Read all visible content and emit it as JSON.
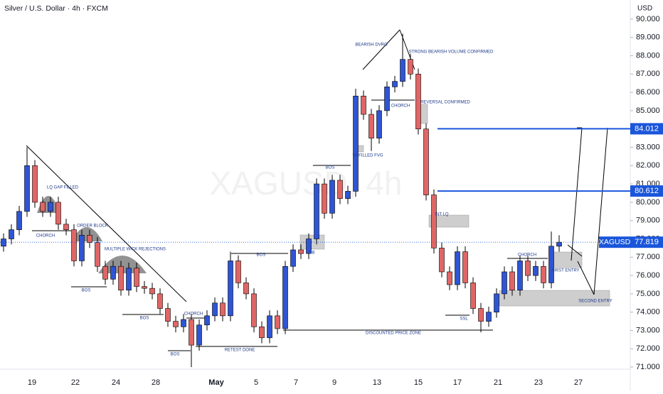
{
  "chart_data": {
    "type": "candlestick",
    "title": "Silver / U.S. Dollar · 4h · FXCM",
    "watermark": "XAGUSD, 4h",
    "y_unit": "USD",
    "symbol": "XAGUSD",
    "last_price": 77.819,
    "up_color": "#2f55d4",
    "down_color": "#e06666",
    "level_color": "#1a56db",
    "ylim": [
      70.5,
      90.5
    ],
    "yticks": [
      {
        "value": 71,
        "label": "71.000"
      },
      {
        "value": 72,
        "label": "72.000"
      },
      {
        "value": 73,
        "label": "73.000"
      },
      {
        "value": 74,
        "label": "74.000"
      },
      {
        "value": 75,
        "label": "75.000"
      },
      {
        "value": 76,
        "label": "76.000"
      },
      {
        "value": 77,
        "label": "77.000"
      },
      {
        "value": 78,
        "label": "78.000"
      },
      {
        "value": 79,
        "label": "79.000"
      },
      {
        "value": 80,
        "label": "80.000"
      },
      {
        "value": 81,
        "label": "81.000"
      },
      {
        "value": 82,
        "label": "82.000"
      },
      {
        "value": 83,
        "label": "83.000"
      },
      {
        "value": 84,
        "label": "84.000"
      },
      {
        "value": 85,
        "label": "85.000"
      },
      {
        "value": 86,
        "label": "86.000"
      },
      {
        "value": 87,
        "label": "87.000"
      },
      {
        "value": 88,
        "label": "88.000"
      },
      {
        "value": 89,
        "label": "89.000"
      },
      {
        "value": 90,
        "label": "90.000"
      }
    ],
    "x_labels": [
      "19",
      "22",
      "24",
      "28",
      "May",
      "5",
      "7",
      "9",
      "13",
      "15",
      "17",
      "21",
      "23",
      "27"
    ],
    "levels": [
      84.012,
      80.612
    ],
    "open": [
      77.6,
      78.0,
      78.5,
      79.5,
      82.0,
      80.0,
      79.5,
      80.0,
      78.8,
      78.5,
      76.8,
      78.2,
      77.8,
      76.5,
      75.8,
      76.5,
      75.2,
      76.4,
      75.4,
      75.3,
      75.0,
      74.2,
      73.5,
      73.2,
      73.6,
      72.2,
      73.3,
      73.8,
      74.5,
      73.8,
      76.8,
      75.6,
      75.0,
      73.2,
      72.6,
      73.8,
      73.1,
      76.5,
      77.4,
      77.2,
      78.0,
      81.0,
      79.4,
      81.2,
      80.2,
      80.6,
      85.8,
      84.8,
      83.5,
      85.0,
      86.3,
      86.6,
      87.8,
      87.0,
      84.0,
      80.4,
      77.5,
      76.2,
      75.5,
      77.3,
      75.6,
      74.2,
      73.5,
      74.0,
      75.0,
      76.2,
      75.2,
      76.8,
      76.0,
      76.5,
      75.6,
      77.6
    ],
    "high": [
      78.3,
      78.8,
      79.8,
      83.0,
      82.3,
      80.3,
      80.3,
      80.3,
      79.1,
      78.8,
      78.5,
      78.5,
      78.1,
      76.8,
      76.8,
      76.8,
      76.7,
      76.7,
      75.7,
      75.6,
      75.3,
      74.5,
      73.8,
      73.9,
      73.9,
      73.6,
      74.1,
      74.8,
      74.8,
      77.3,
      77.1,
      75.9,
      75.3,
      73.5,
      74.1,
      74.1,
      76.8,
      77.7,
      77.7,
      78.3,
      81.3,
      81.3,
      81.5,
      81.5,
      80.9,
      86.2,
      86.1,
      85.1,
      85.3,
      86.6,
      86.9,
      89.2,
      88.1,
      87.3,
      84.3,
      80.7,
      77.8,
      76.5,
      77.6,
      77.6,
      75.9,
      74.5,
      74.3,
      75.3,
      76.5,
      76.5,
      77.1,
      77.1,
      76.8,
      76.8,
      78.4,
      78.2
    ],
    "low": [
      77.3,
      77.7,
      78.2,
      79.2,
      79.7,
      79.2,
      79.2,
      78.5,
      78.2,
      76.5,
      76.5,
      77.5,
      76.2,
      75.5,
      75.5,
      74.9,
      74.9,
      75.1,
      75.0,
      74.7,
      73.9,
      73.2,
      72.9,
      72.9,
      71.0,
      71.9,
      73.0,
      73.5,
      73.5,
      73.5,
      75.3,
      74.7,
      72.9,
      72.3,
      72.3,
      72.8,
      72.8,
      76.2,
      76.9,
      76.9,
      77.7,
      79.1,
      79.1,
      79.9,
      79.9,
      80.3,
      84.5,
      82.8,
      83.2,
      84.7,
      86.0,
      86.3,
      86.7,
      83.7,
      80.1,
      77.2,
      75.9,
      75.2,
      75.2,
      75.3,
      73.9,
      72.9,
      73.2,
      73.7,
      74.7,
      74.9,
      74.9,
      75.7,
      75.7,
      75.3,
      75.3,
      77.3
    ],
    "close": [
      78.0,
      78.5,
      79.5,
      82.0,
      80.0,
      79.5,
      80.0,
      78.8,
      78.5,
      76.8,
      78.2,
      77.8,
      76.5,
      75.8,
      76.5,
      75.2,
      76.4,
      75.4,
      75.3,
      75.0,
      74.2,
      73.5,
      73.2,
      73.6,
      72.2,
      73.3,
      73.8,
      74.5,
      73.8,
      76.8,
      75.6,
      75.0,
      73.2,
      72.6,
      73.8,
      73.1,
      76.5,
      77.4,
      77.2,
      78.0,
      81.0,
      79.4,
      81.2,
      80.2,
      80.6,
      85.8,
      84.8,
      83.5,
      85.0,
      86.3,
      86.6,
      87.8,
      87.0,
      84.0,
      80.4,
      77.5,
      76.2,
      75.5,
      77.3,
      75.6,
      74.2,
      73.5,
      74.0,
      75.0,
      76.2,
      75.2,
      76.8,
      76.0,
      76.5,
      75.6,
      77.6,
      77.819
    ],
    "annotations": [
      "LQ GAP FILLED",
      "CHORCH",
      "ORDER BLOCK",
      "MULTIPLE WICK REJECTIONS",
      "BOS",
      "BOS",
      "CHORCH",
      "BOS",
      "RETEST DONE",
      "BOS",
      "OB",
      "BOS",
      "UNFILLED FVG",
      "BEARISH DVRG",
      "STRONG BEARISH VOLUME CONFIRMED",
      "CHORCH",
      "REVERSAL CONFIRMED",
      "INT LQ",
      "SSL",
      "DISCOUNTED PRICE ZONE",
      "CHORCH",
      "FIRST ENTRY",
      "SECOND ENTRY"
    ]
  }
}
